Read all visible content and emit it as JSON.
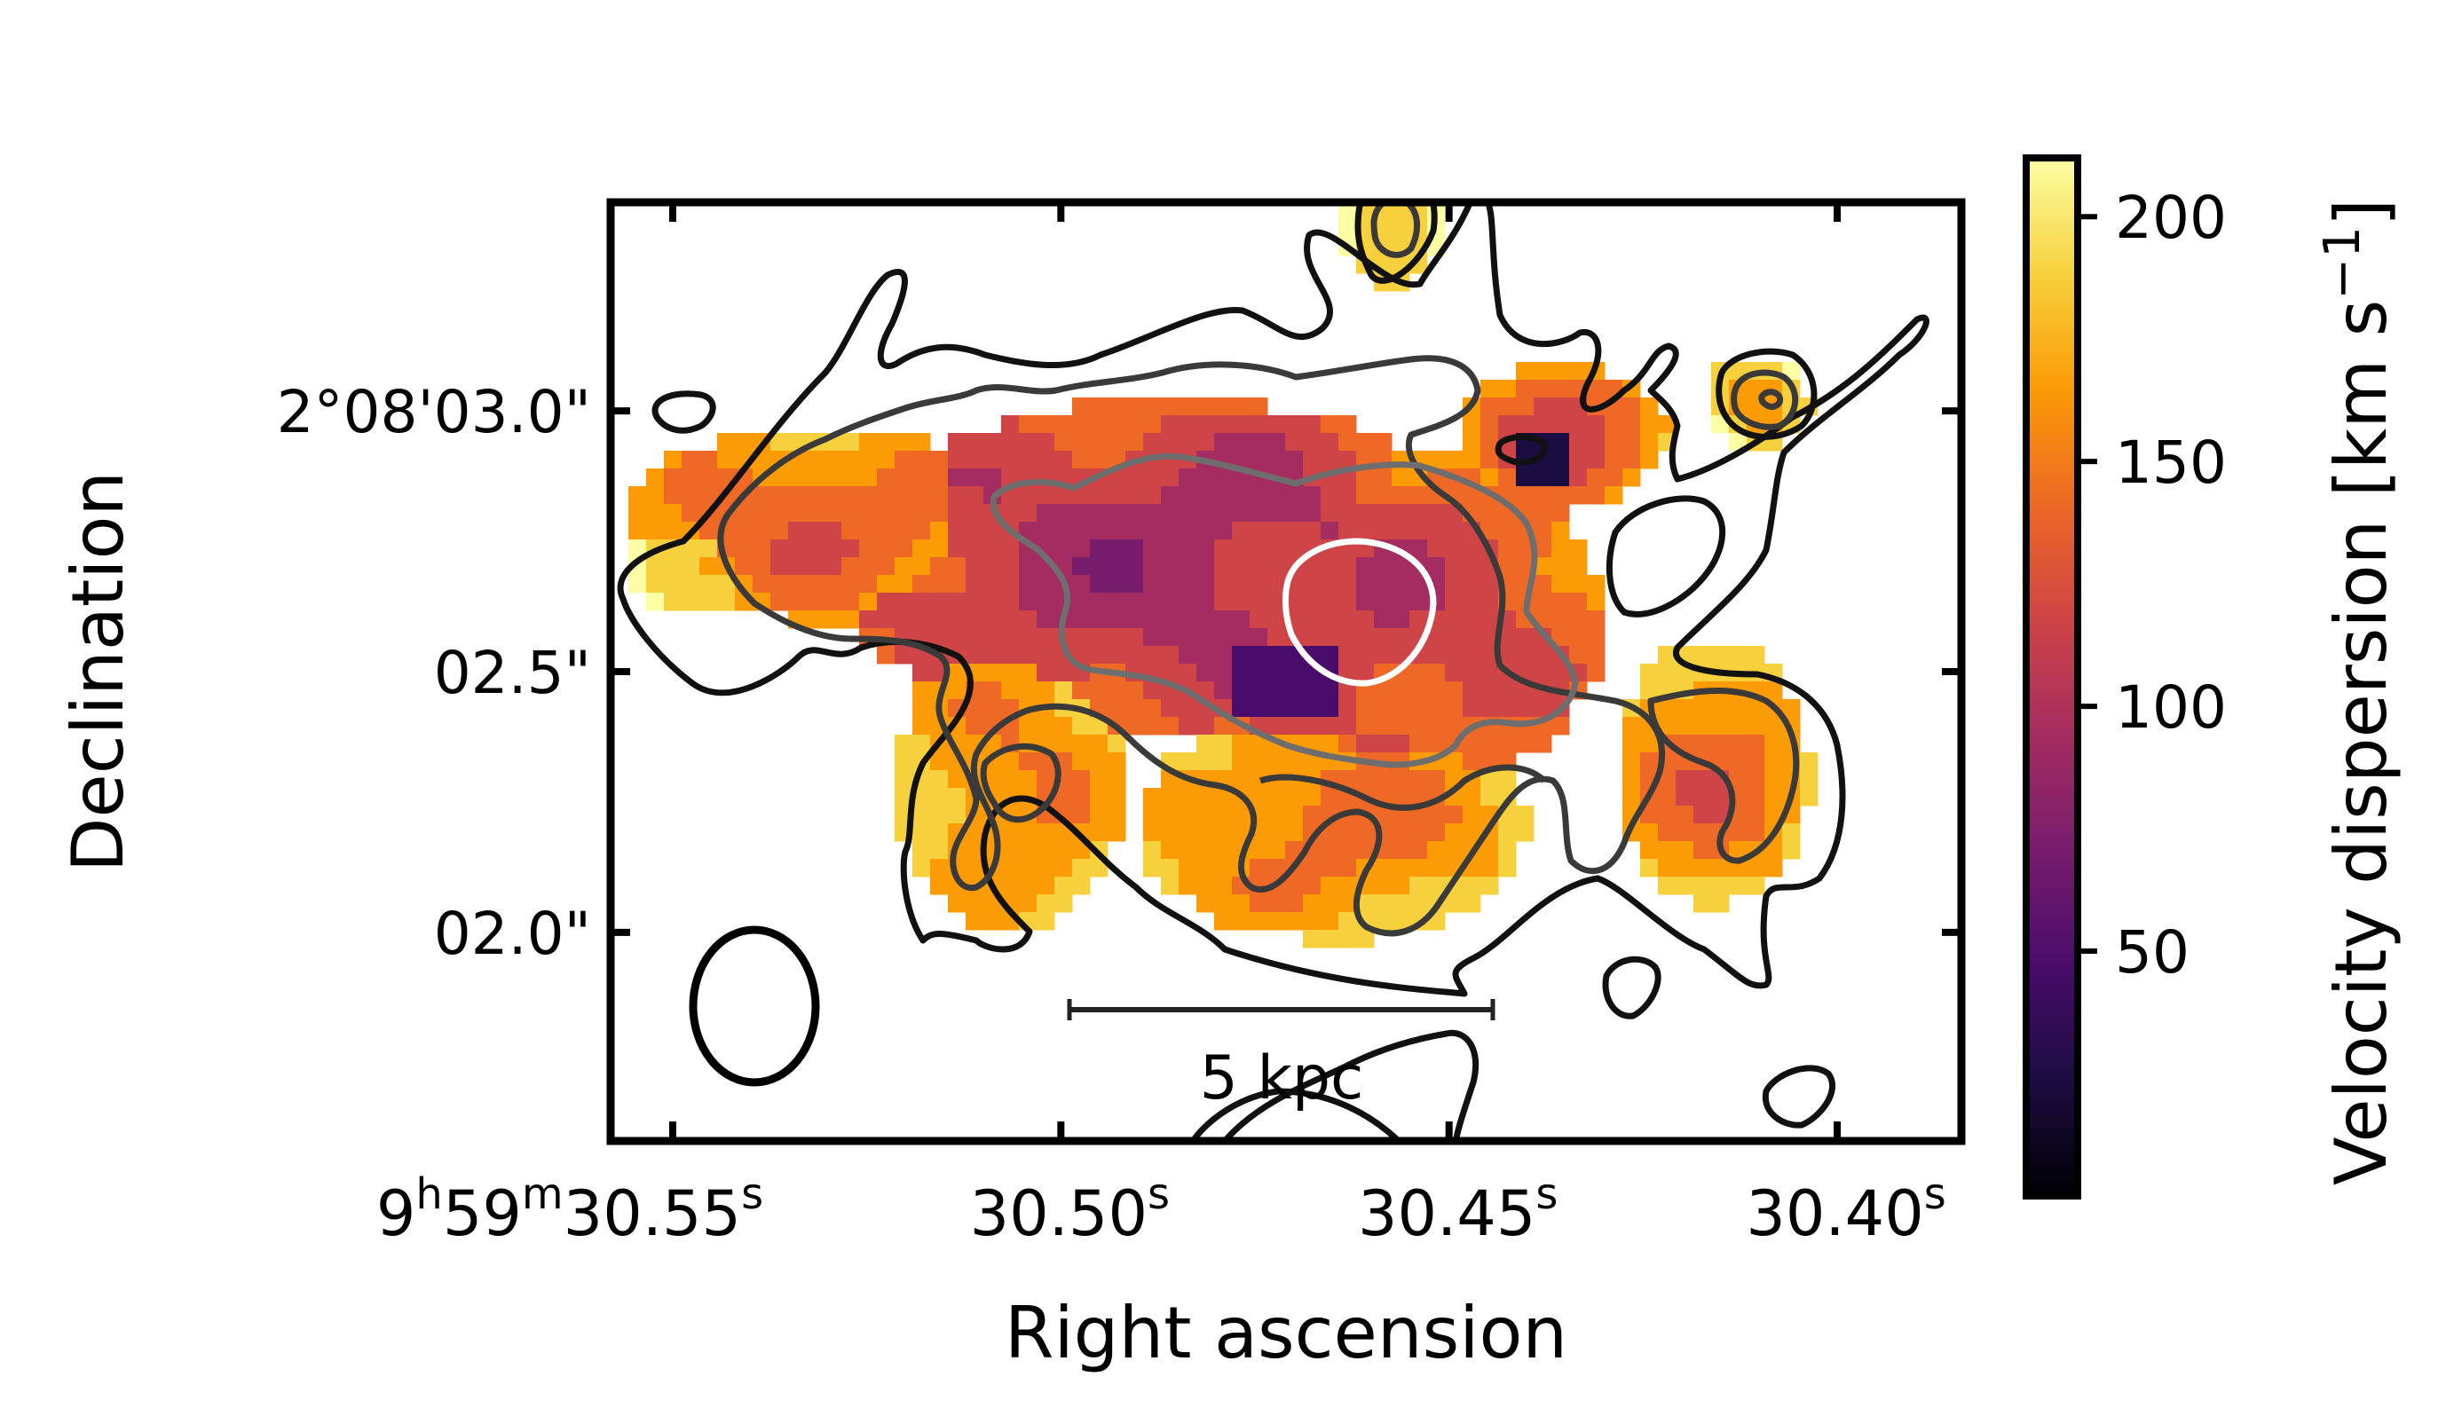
{
  "chart_data": {
    "type": "heatmap",
    "xlabel": "Right ascension",
    "ylabel": "Declination",
    "x_ticks": [
      {
        "value": 30.55,
        "label_main": "9",
        "sup1": "h",
        "mid": "59",
        "sup2": "m",
        "tail": "30.55",
        "sup3": "s"
      },
      {
        "value": 30.5,
        "label_main": "30.50",
        "sup1": "s"
      },
      {
        "value": 30.45,
        "label_main": "30.45",
        "sup1": "s"
      },
      {
        "value": 30.4,
        "label_main": "30.40",
        "sup1": "s"
      }
    ],
    "y_ticks": [
      {
        "value": 3.0,
        "label": "2°08'03.0\""
      },
      {
        "value": 2.5,
        "label": "02.5\""
      },
      {
        "value": 2.0,
        "label": "02.0\""
      }
    ],
    "xlim": [
      30.558,
      30.384
    ],
    "ylim": [
      1.6,
      3.4
    ],
    "colorbar": {
      "label": "Velocity dispersion [km s",
      "label_sup": "−1",
      "label_end": "]",
      "ticks": [
        50,
        100,
        150,
        200
      ],
      "range": [
        0,
        212
      ],
      "colormap": "inferno"
    },
    "scale_bar": {
      "label": "5 kpc",
      "x_start": 30.498,
      "x_end": 30.444,
      "y": 1.85
    },
    "beam": {
      "x": 30.548,
      "y": 1.84,
      "width_ra": 0.0205,
      "height_dec": 0.24
    },
    "colormap_stops": [
      "#000004",
      "#1b0c41",
      "#4a0c6b",
      "#781c6d",
      "#a52c60",
      "#cf4446",
      "#ed6925",
      "#fb9b06",
      "#f7d13d",
      "#fcffa4"
    ],
    "contour_colors": {
      "outer": "#111111",
      "mid": "#3a3a3a",
      "inner": "#6e6e6e",
      "core": "#ffffff"
    }
  }
}
